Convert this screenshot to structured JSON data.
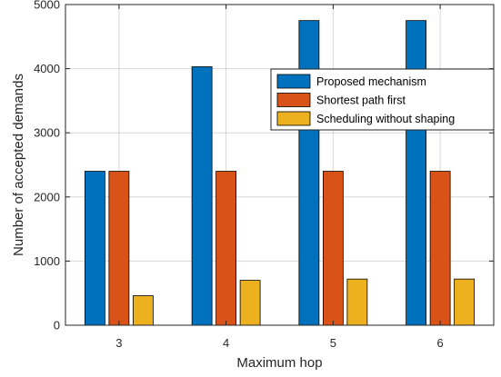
{
  "chart_data": {
    "type": "bar",
    "categories": [
      "3",
      "4",
      "5",
      "6"
    ],
    "series": [
      {
        "name": "Proposed mechanism",
        "color": "#0072BD",
        "values": [
          2400,
          4030,
          4750,
          4750
        ]
      },
      {
        "name": "Shortest path first",
        "color": "#D95319",
        "values": [
          2400,
          2400,
          2400,
          2400
        ]
      },
      {
        "name": "Scheduling without shaping",
        "color": "#EDB120",
        "values": [
          460,
          700,
          720,
          720
        ]
      }
    ],
    "title": "",
    "xlabel": "Maximum hop",
    "ylabel": "Number of accepted demands",
    "ylim": [
      0,
      5000
    ],
    "yticks": [
      0,
      1000,
      2000,
      3000,
      4000,
      5000
    ],
    "grid": true,
    "legend_position": "top-right"
  }
}
